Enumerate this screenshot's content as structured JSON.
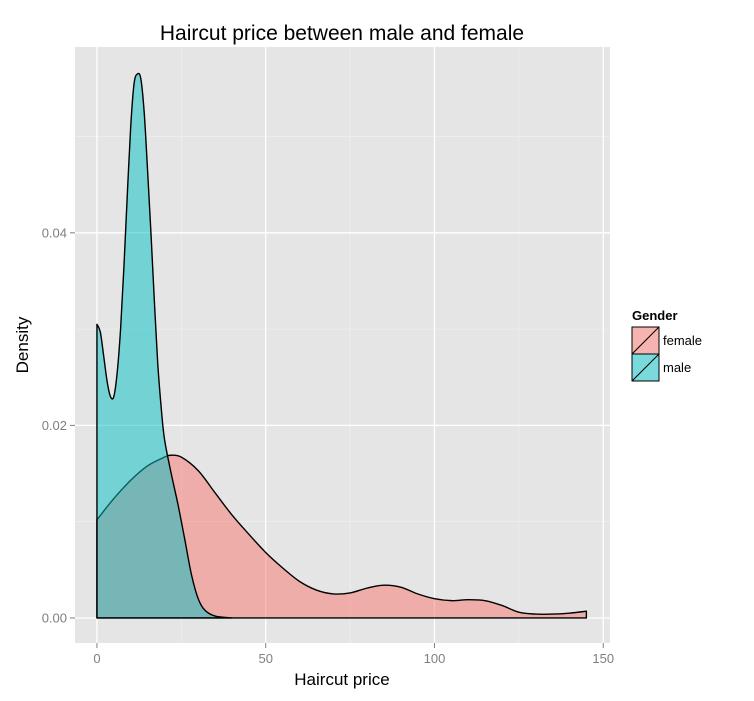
{
  "chart_data": {
    "type": "area",
    "title": "Haircut price between male and female",
    "xlabel": "Haircut price",
    "ylabel": "Density",
    "xlim": [
      -6.5,
      152
    ],
    "ylim": [
      -0.0026,
      0.0593
    ],
    "x_ticks": [
      0,
      50,
      100,
      150
    ],
    "x_tick_labels": [
      "0",
      "50",
      "100",
      "150"
    ],
    "y_ticks": [
      0.0,
      0.02,
      0.04
    ],
    "y_tick_labels": [
      "0.00",
      "0.02",
      "0.04"
    ],
    "grid": true,
    "legend": {
      "title": "Gender",
      "position": "right"
    },
    "series": [
      {
        "name": "female",
        "color": "#F8766D",
        "x": [
          0,
          5,
          10,
          15,
          20,
          22,
          25,
          30,
          35,
          40,
          45,
          50,
          55,
          60,
          65,
          70,
          75,
          80,
          85,
          90,
          95,
          100,
          105,
          110,
          115,
          120,
          125,
          130,
          135,
          140,
          145
        ],
        "y": [
          0.0102,
          0.0124,
          0.0143,
          0.0158,
          0.0167,
          0.0169,
          0.0167,
          0.0153,
          0.013,
          0.0107,
          0.0087,
          0.0068,
          0.0052,
          0.0038,
          0.0029,
          0.0025,
          0.0026,
          0.0031,
          0.0034,
          0.0032,
          0.0025,
          0.002,
          0.0018,
          0.0019,
          0.0018,
          0.0013,
          0.0006,
          0.0004,
          0.0004,
          0.0005,
          0.0007
        ]
      },
      {
        "name": "male",
        "color": "#00BFC4",
        "x": [
          0,
          1,
          2,
          3,
          4,
          5,
          6,
          7,
          8,
          9,
          10,
          11,
          12,
          13,
          14,
          15,
          16,
          17,
          18,
          19,
          20,
          22,
          24,
          26,
          28,
          30,
          32,
          35,
          40
        ],
        "y": [
          0.0305,
          0.0297,
          0.0272,
          0.0246,
          0.023,
          0.023,
          0.0255,
          0.03,
          0.0365,
          0.044,
          0.051,
          0.0555,
          0.0565,
          0.056,
          0.0525,
          0.0465,
          0.04,
          0.033,
          0.0265,
          0.022,
          0.0186,
          0.015,
          0.0118,
          0.0082,
          0.0045,
          0.002,
          0.0008,
          0.0002,
          0.0
        ]
      }
    ]
  }
}
